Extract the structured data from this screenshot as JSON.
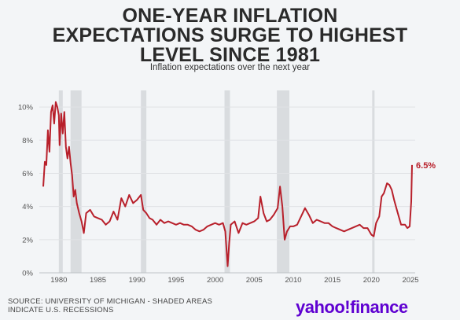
{
  "header": {
    "title_lines": [
      "ONE-YEAR INFLATION",
      "EXPECTATIONS SURGE TO HIGHEST",
      "LEVEL SINCE 1981"
    ],
    "subtitle": "Inflation expectations over the next year"
  },
  "footer": {
    "source_lines": [
      "SOURCE: UNIVERSITY OF MICHIGAN - SHADED AREAS",
      "INDICATE U.S. RECESSIONS"
    ],
    "logo": "yahoo!finance"
  },
  "colors": {
    "line": "#b8202b",
    "recession": "#d9dcdf",
    "grid": "#e0e2e5",
    "logo": "#5f01d1"
  },
  "chart_data": {
    "type": "line",
    "title": "ONE-YEAR INFLATION EXPECTATIONS SURGE TO HIGHEST LEVEL SINCE 1981",
    "subtitle": "Inflation expectations over the next year",
    "xlabel": "",
    "ylabel": "",
    "xlim": [
      1977.5,
      2025.6
    ],
    "ylim": [
      0,
      11
    ],
    "x_ticks": [
      1980,
      1985,
      1990,
      1995,
      2000,
      2005,
      2010,
      2015,
      2020,
      2025
    ],
    "y_ticks": [
      0,
      2,
      4,
      6,
      8,
      10
    ],
    "y_tick_labels": [
      "0%",
      "2%",
      "4%",
      "6%",
      "8%",
      "10%"
    ],
    "grid": "horizontal",
    "recessions": [
      [
        1980.0,
        1980.5
      ],
      [
        1981.5,
        1982.9
      ],
      [
        1990.5,
        1991.2
      ],
      [
        2001.2,
        2001.9
      ],
      [
        2007.9,
        2009.5
      ],
      [
        2020.1,
        2020.4
      ]
    ],
    "end_label": "6.5%",
    "series": [
      {
        "x": [
          1978.0,
          1978.2,
          1978.4,
          1978.6,
          1978.8,
          1979.0,
          1979.2,
          1979.4,
          1979.6,
          1979.8,
          1980.0,
          1980.1,
          1980.3,
          1980.5,
          1980.7,
          1980.9,
          1981.1,
          1981.3,
          1981.5,
          1981.7,
          1981.9,
          1982.1,
          1982.3,
          1982.6,
          1982.9,
          1983.2,
          1983.5,
          1984.0,
          1984.5,
          1985.0,
          1985.5,
          1986.0,
          1986.5,
          1987.0,
          1987.5,
          1988.0,
          1988.5,
          1989.0,
          1989.5,
          1990.0,
          1990.5,
          1990.8,
          1991.2,
          1991.6,
          1992.0,
          1992.5,
          1993.0,
          1993.5,
          1994.0,
          1994.5,
          1995.0,
          1995.5,
          1996.0,
          1996.5,
          1997.0,
          1997.5,
          1998.0,
          1998.5,
          1999.0,
          1999.5,
          2000.0,
          2000.5,
          2001.0,
          2001.3,
          2001.6,
          2001.8,
          2002.0,
          2002.5,
          2003.0,
          2003.5,
          2004.0,
          2004.5,
          2005.0,
          2005.5,
          2005.8,
          2006.2,
          2006.6,
          2007.0,
          2007.5,
          2008.0,
          2008.3,
          2008.6,
          2008.9,
          2009.2,
          2009.6,
          2010.0,
          2010.5,
          2011.0,
          2011.5,
          2012.0,
          2012.5,
          2013.0,
          2013.5,
          2014.0,
          2014.5,
          2015.0,
          2015.5,
          2016.0,
          2016.5,
          2017.0,
          2017.5,
          2018.0,
          2018.5,
          2019.0,
          2019.5,
          2020.0,
          2020.3,
          2020.6,
          2021.0,
          2021.3,
          2021.6,
          2022.0,
          2022.3,
          2022.6,
          2022.9,
          2023.2,
          2023.5,
          2023.8,
          2024.0,
          2024.3,
          2024.6,
          2024.9,
          2025.1,
          2025.2
        ],
        "values": [
          5.2,
          6.7,
          6.5,
          8.6,
          7.3,
          9.7,
          10.1,
          9.0,
          10.3,
          10.0,
          9.5,
          7.7,
          9.6,
          8.4,
          9.7,
          7.6,
          6.9,
          7.6,
          6.6,
          5.9,
          4.6,
          5.0,
          4.2,
          3.6,
          3.1,
          2.4,
          3.6,
          3.8,
          3.4,
          3.3,
          3.2,
          2.9,
          3.1,
          3.7,
          3.2,
          4.5,
          4.0,
          4.7,
          4.2,
          4.4,
          4.7,
          3.8,
          3.6,
          3.3,
          3.2,
          2.9,
          3.2,
          3.0,
          3.1,
          3.0,
          2.9,
          3.0,
          2.9,
          2.9,
          2.8,
          2.6,
          2.5,
          2.6,
          2.8,
          2.9,
          3.0,
          2.9,
          3.0,
          2.5,
          0.4,
          1.8,
          2.9,
          3.1,
          2.4,
          3.0,
          2.9,
          3.0,
          3.1,
          3.3,
          4.6,
          3.6,
          3.1,
          3.2,
          3.5,
          3.9,
          5.2,
          4.0,
          2.0,
          2.5,
          2.8,
          2.8,
          2.9,
          3.4,
          3.9,
          3.5,
          3.0,
          3.2,
          3.1,
          3.0,
          3.0,
          2.8,
          2.7,
          2.6,
          2.5,
          2.6,
          2.7,
          2.8,
          2.9,
          2.7,
          2.7,
          2.3,
          2.2,
          3.0,
          3.4,
          4.6,
          4.8,
          5.4,
          5.3,
          5.0,
          4.4,
          3.9,
          3.4,
          2.9,
          2.9,
          2.9,
          2.7,
          2.8,
          4.3,
          6.5
        ]
      }
    ]
  }
}
